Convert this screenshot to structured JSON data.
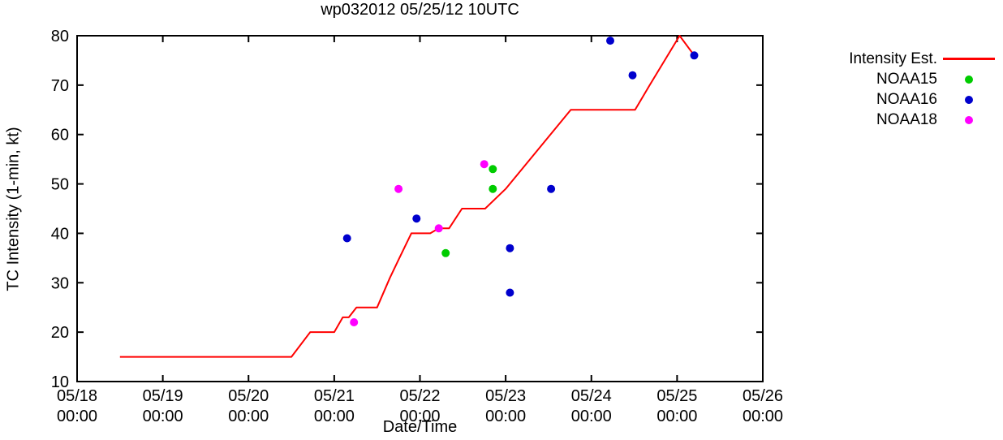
{
  "chart_data": {
    "type": "line+scatter",
    "title": "wp032012 05/25/12 10UTC",
    "xlabel": "Date/Time",
    "ylabel": "TC Intensity (1-min, kt)",
    "grid": false,
    "legend_position": "outside-top-right",
    "x_axis": {
      "unit": "days since 05/18 00:00 UTC",
      "range": [
        0,
        8
      ],
      "ticks": [
        {
          "pos": 0,
          "date": "05/18",
          "time": "00:00"
        },
        {
          "pos": 1,
          "date": "05/19",
          "time": "00:00"
        },
        {
          "pos": 2,
          "date": "05/20",
          "time": "00:00"
        },
        {
          "pos": 3,
          "date": "05/21",
          "time": "00:00"
        },
        {
          "pos": 4,
          "date": "05/22",
          "time": "00:00"
        },
        {
          "pos": 5,
          "date": "05/23",
          "time": "00:00"
        },
        {
          "pos": 6,
          "date": "05/24",
          "time": "00:00"
        },
        {
          "pos": 7,
          "date": "05/25",
          "time": "00:00"
        },
        {
          "pos": 8,
          "date": "05/26",
          "time": "00:00"
        }
      ]
    },
    "y_axis": {
      "range": [
        10,
        80
      ],
      "ticks": [
        10,
        20,
        30,
        40,
        50,
        60,
        70,
        80
      ]
    },
    "series": [
      {
        "name": "Intensity Est.",
        "type": "line",
        "color": "#ff0000",
        "points": [
          [
            0.5,
            15
          ],
          [
            2.5,
            15
          ],
          [
            2.72,
            20
          ],
          [
            3.0,
            20
          ],
          [
            3.1,
            23
          ],
          [
            3.17,
            23
          ],
          [
            3.26,
            25
          ],
          [
            3.5,
            25
          ],
          [
            3.65,
            31
          ],
          [
            3.76,
            35
          ],
          [
            3.9,
            40
          ],
          [
            4.12,
            40
          ],
          [
            4.22,
            41
          ],
          [
            4.34,
            41
          ],
          [
            4.49,
            45
          ],
          [
            4.76,
            45
          ],
          [
            5.0,
            49
          ],
          [
            5.76,
            65
          ],
          [
            6.51,
            65
          ],
          [
            6.68,
            70
          ],
          [
            7.03,
            80
          ],
          [
            7.2,
            76
          ]
        ]
      },
      {
        "name": "NOAA15",
        "type": "scatter",
        "color": "#00cc00",
        "points": [
          [
            4.3,
            36
          ],
          [
            4.85,
            49
          ],
          [
            4.85,
            53
          ]
        ]
      },
      {
        "name": "NOAA16",
        "type": "scatter",
        "color": "#0000cd",
        "points": [
          [
            3.15,
            39
          ],
          [
            3.96,
            43
          ],
          [
            5.05,
            28
          ],
          [
            5.05,
            37
          ],
          [
            5.53,
            49
          ],
          [
            6.22,
            79
          ],
          [
            6.48,
            72
          ],
          [
            7.2,
            76
          ]
        ]
      },
      {
        "name": "NOAA18",
        "type": "scatter",
        "color": "#ff00ff",
        "points": [
          [
            3.23,
            22
          ],
          [
            3.75,
            49
          ],
          [
            4.22,
            41
          ],
          [
            4.75,
            54
          ]
        ]
      }
    ]
  }
}
